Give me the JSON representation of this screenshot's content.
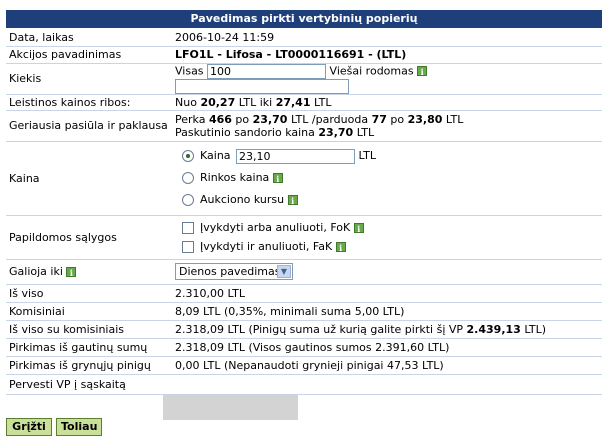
{
  "title": "Pavedimas pirkti vertybinių popierių",
  "rows": {
    "date": {
      "label": "Data, laikas",
      "value": "2006-10-24 11:59"
    },
    "stock": {
      "label": "Akcijos pavadinimas",
      "value": "LFO1L - Lifosa - LT0000116691 - (LTL)"
    },
    "qty": {
      "label": "Kiekis",
      "total_label": "Visas",
      "total_value": "100",
      "public_label": "Viešai rodomas",
      "public_value": ""
    },
    "limits": {
      "label": "Leistinos kainos ribos:",
      "prefix": "Nuo",
      "min": "20,27",
      "unit": "LTL",
      "mid": "iki",
      "max": "27,41"
    },
    "best": {
      "label": "Geriausia pasiūla ir paklausa",
      "l1_a": "Perka",
      "buy_qty": "466",
      "l1_b": "po",
      "buy_price": "23,70",
      "l1_c": "LTL /parduoda",
      "sell_qty": "77",
      "l1_d": "po",
      "sell_price": "23,80",
      "l1_e": "LTL",
      "l2_a": "Paskutinio sandorio kaina",
      "last_price": "23,70",
      "l2_b": "LTL"
    },
    "price": {
      "label": "Kaina",
      "opt1": "Kaina",
      "opt1_value": "23,10",
      "opt1_unit": "LTL",
      "opt2": "Rinkos kaina",
      "opt3": "Aukciono kursu"
    },
    "cond": {
      "label": "Papildomos sąlygos",
      "opt1": "Įvykdyti arba anuliuoti, FoK",
      "opt2": "Įvykdyti ir anuliuoti, FaK"
    },
    "valid": {
      "label": "Galioja iki",
      "selected": "Dienos pavedimas"
    },
    "total": {
      "label": "Iš viso",
      "value": "2.310,00 LTL"
    },
    "fee": {
      "label": "Komisiniai",
      "value": "8,09 LTL (0,35%, minimali suma 5,00 LTL)"
    },
    "total_fee": {
      "label": "Iš viso su komisiniais",
      "value_a": "2.318,09 LTL (Pinigų suma už kurią galite pirkti šį VP",
      "value_b": "2.439,13",
      "value_c": "LTL)"
    },
    "from_received": {
      "label": "Pirkimas iš gautinų sumų",
      "value": "2.318,09 LTL (Visos gautinos sumos 2.391,60 LTL)"
    },
    "from_cash": {
      "label": "Pirkimas iš grynųjų pinigų",
      "value": "0,00 LTL (Nepanaudoti grynieji pinigai 47,53 LTL)"
    },
    "transfer": {
      "label": "Pervesti VP į sąskaitą"
    }
  },
  "buttons": {
    "back": "Grįžti",
    "next": "Toliau"
  },
  "colors": {
    "header": "#1f3f7a",
    "button": "#c9df9a",
    "info_icon": "#6aa84f"
  }
}
